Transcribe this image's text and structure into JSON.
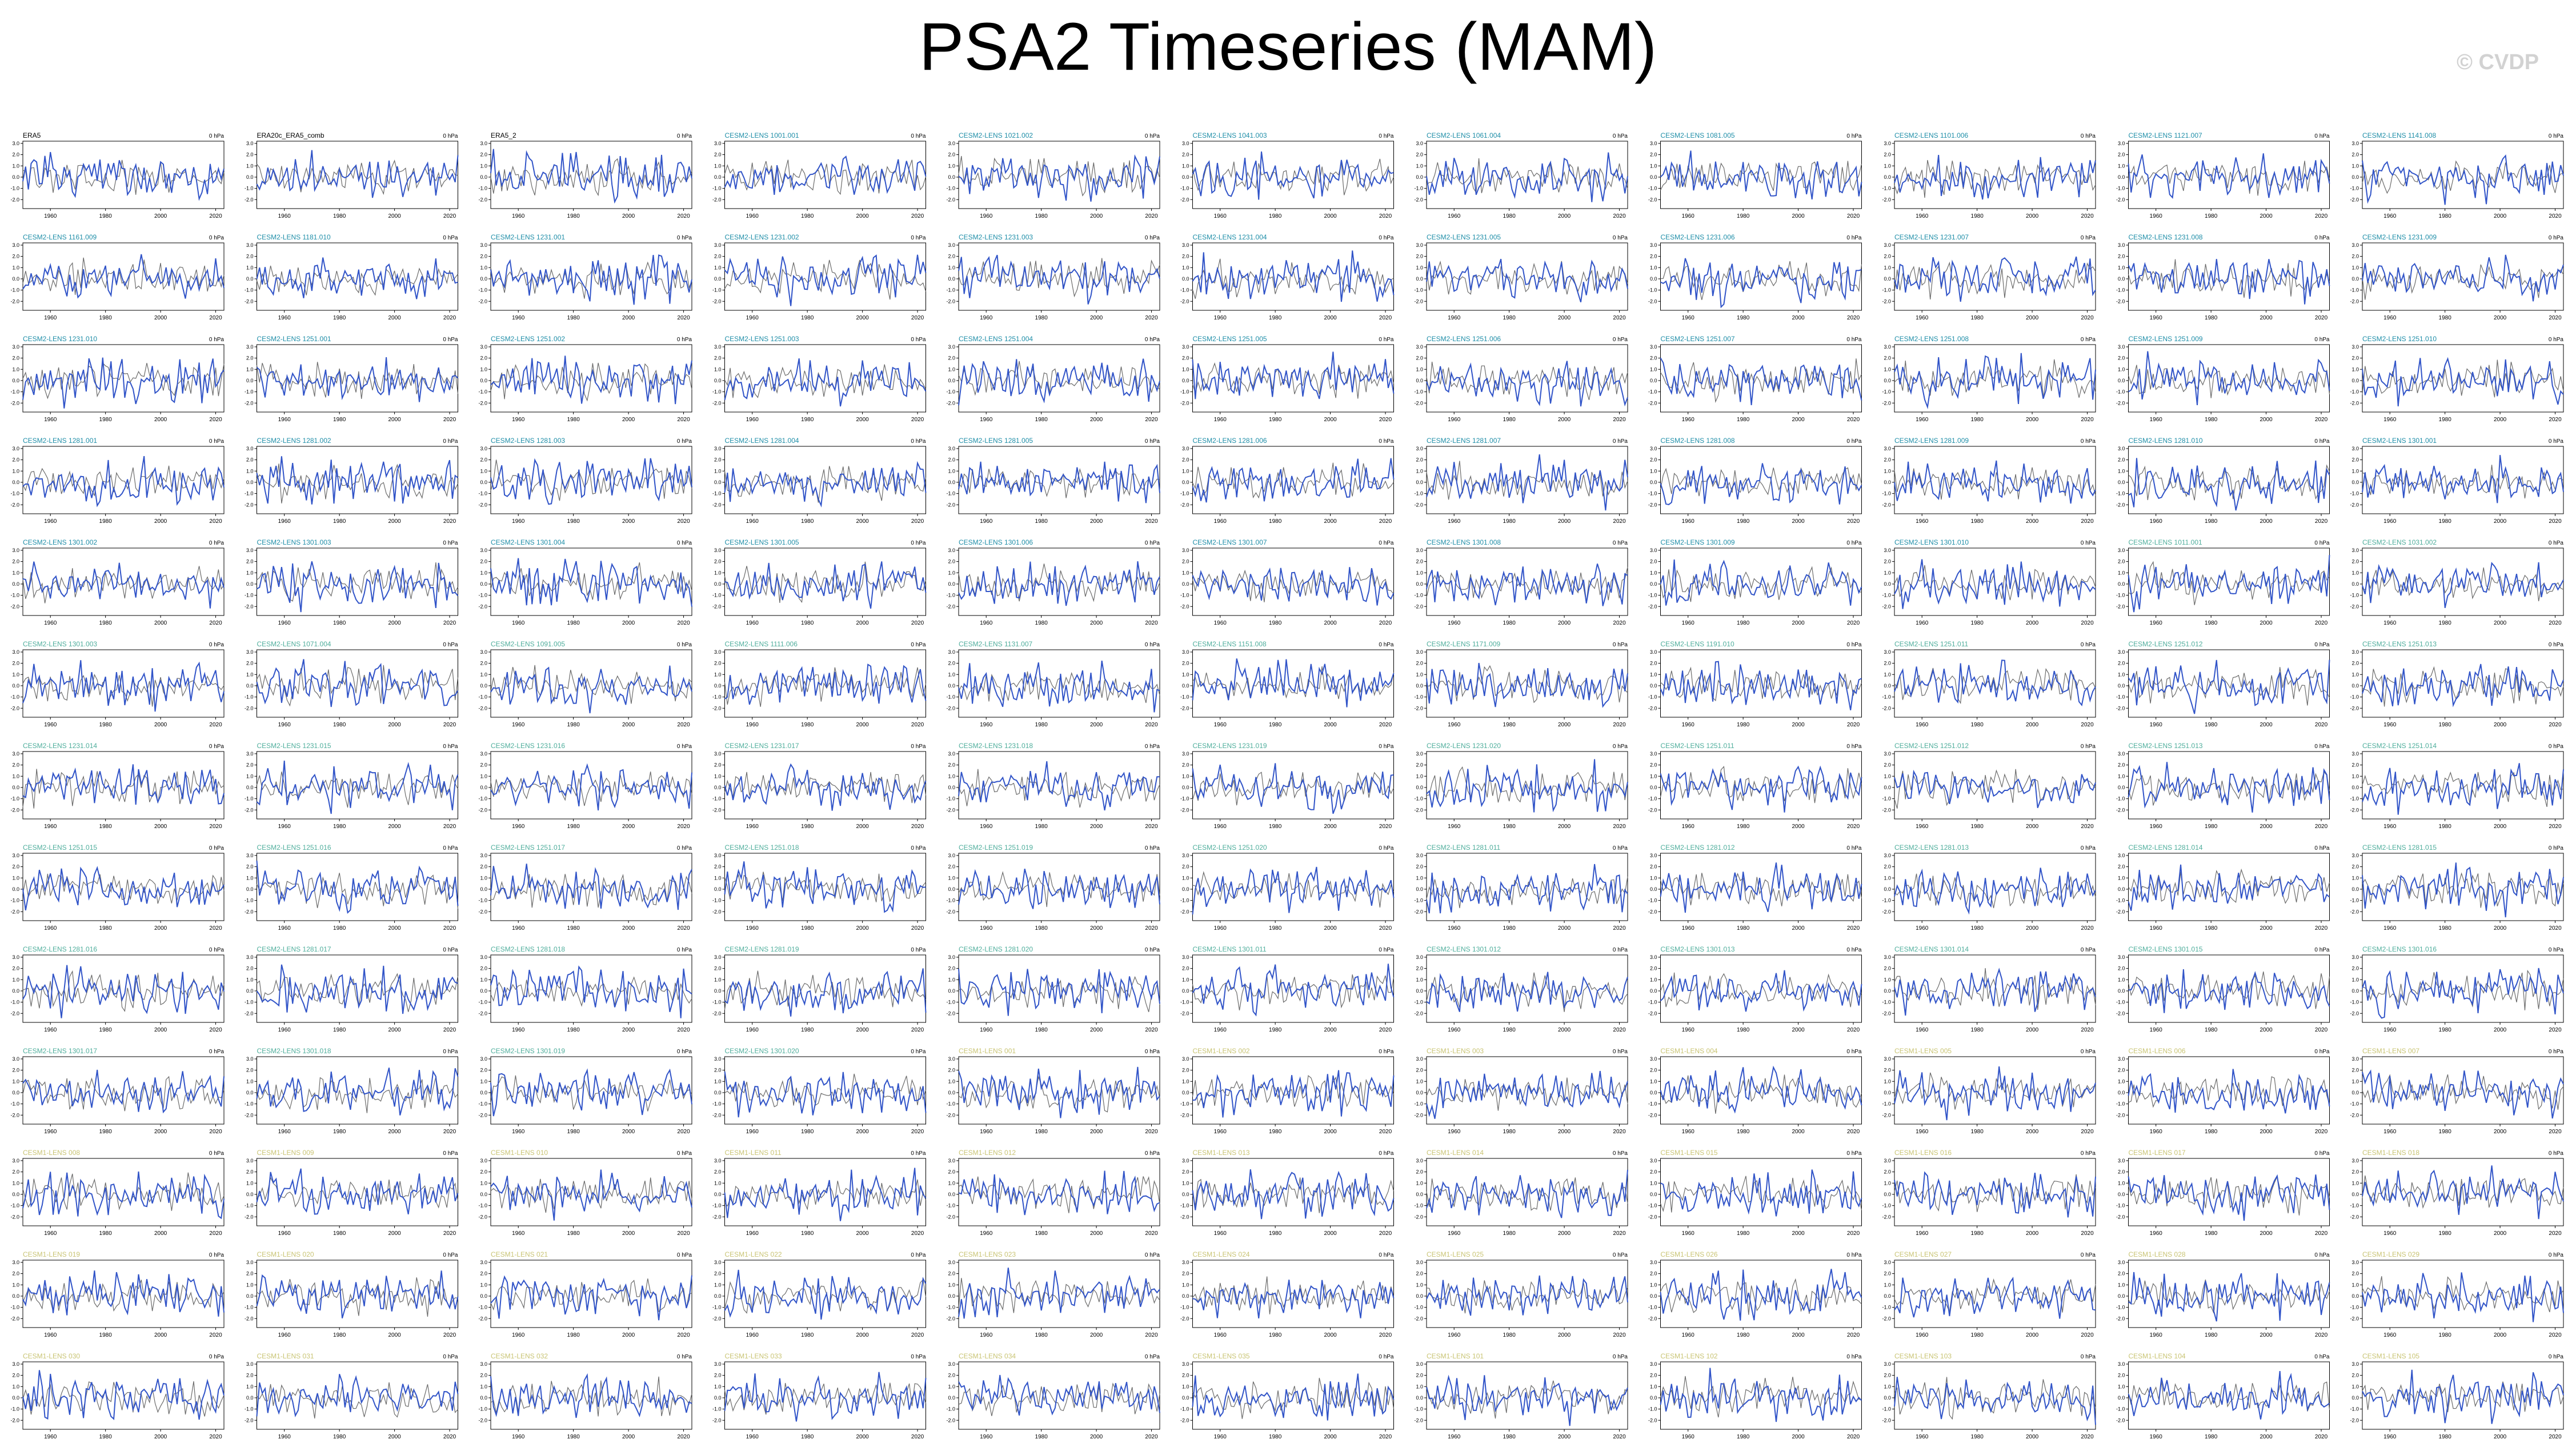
{
  "title": "PSA2 Timeseries (MAM)",
  "watermark": "© CVDP",
  "colors": {
    "observed_line": "#3154c8",
    "reference_line": "#6b6b6b",
    "group_obs": "#000000",
    "group_cesm2": "#1f8ea8",
    "group_cesm2b": "#4fae9c",
    "group_cesm1": "#c9c474"
  },
  "chart_data": {
    "type": "line",
    "layout": "small-multiples",
    "rows": 14,
    "columns": 11,
    "xlim": [
      1950,
      2023
    ],
    "xticks": [
      1960,
      1980,
      2000,
      2020
    ],
    "ylim": [
      -2.8,
      3.2
    ],
    "yticks": [
      "3.0",
      "2.0",
      "1.0",
      "0.0",
      "-1.0",
      "-2.0"
    ],
    "units": "0 hPa",
    "series": [
      "observed",
      "reference"
    ],
    "panels": [
      {
        "title": "ERA5",
        "group": "obs"
      },
      {
        "title": "ERA20c_ERA5_comb",
        "group": "obs"
      },
      {
        "title": "ERA5_2",
        "group": "obs"
      },
      {
        "title": "CESM2-LENS 1001.001",
        "group": "cesm2"
      },
      {
        "title": "CESM2-LENS 1021.002",
        "group": "cesm2"
      },
      {
        "title": "CESM2-LENS 1041.003",
        "group": "cesm2"
      },
      {
        "title": "CESM2-LENS 1061.004",
        "group": "cesm2"
      },
      {
        "title": "CESM2-LENS 1081.005",
        "group": "cesm2"
      },
      {
        "title": "CESM2-LENS 1101.006",
        "group": "cesm2"
      },
      {
        "title": "CESM2-LENS 1121.007",
        "group": "cesm2"
      },
      {
        "title": "CESM2-LENS 1141.008",
        "group": "cesm2"
      },
      {
        "title": "CESM2-LENS 1161.009",
        "group": "cesm2"
      },
      {
        "title": "CESM2-LENS 1181.010",
        "group": "cesm2"
      },
      {
        "title": "CESM2-LENS 1231.001",
        "group": "cesm2"
      },
      {
        "title": "CESM2-LENS 1231.002",
        "group": "cesm2"
      },
      {
        "title": "CESM2-LENS 1231.003",
        "group": "cesm2"
      },
      {
        "title": "CESM2-LENS 1231.004",
        "group": "cesm2"
      },
      {
        "title": "CESM2-LENS 1231.005",
        "group": "cesm2"
      },
      {
        "title": "CESM2-LENS 1231.006",
        "group": "cesm2"
      },
      {
        "title": "CESM2-LENS 1231.007",
        "group": "cesm2"
      },
      {
        "title": "CESM2-LENS 1231.008",
        "group": "cesm2"
      },
      {
        "title": "CESM2-LENS 1231.009",
        "group": "cesm2"
      },
      {
        "title": "CESM2-LENS 1231.010",
        "group": "cesm2"
      },
      {
        "title": "CESM2-LENS 1251.001",
        "group": "cesm2"
      },
      {
        "title": "CESM2-LENS 1251.002",
        "group": "cesm2"
      },
      {
        "title": "CESM2-LENS 1251.003",
        "group": "cesm2"
      },
      {
        "title": "CESM2-LENS 1251.004",
        "group": "cesm2"
      },
      {
        "title": "CESM2-LENS 1251.005",
        "group": "cesm2"
      },
      {
        "title": "CESM2-LENS 1251.006",
        "group": "cesm2"
      },
      {
        "title": "CESM2-LENS 1251.007",
        "group": "cesm2"
      },
      {
        "title": "CESM2-LENS 1251.008",
        "group": "cesm2"
      },
      {
        "title": "CESM2-LENS 1251.009",
        "group": "cesm2"
      },
      {
        "title": "CESM2-LENS 1251.010",
        "group": "cesm2"
      },
      {
        "title": "CESM2-LENS 1281.001",
        "group": "cesm2"
      },
      {
        "title": "CESM2-LENS 1281.002",
        "group": "cesm2"
      },
      {
        "title": "CESM2-LENS 1281.003",
        "group": "cesm2"
      },
      {
        "title": "CESM2-LENS 1281.004",
        "group": "cesm2"
      },
      {
        "title": "CESM2-LENS 1281.005",
        "group": "cesm2"
      },
      {
        "title": "CESM2-LENS 1281.006",
        "group": "cesm2"
      },
      {
        "title": "CESM2-LENS 1281.007",
        "group": "cesm2"
      },
      {
        "title": "CESM2-LENS 1281.008",
        "group": "cesm2"
      },
      {
        "title": "CESM2-LENS 1281.009",
        "group": "cesm2"
      },
      {
        "title": "CESM2-LENS 1281.010",
        "group": "cesm2"
      },
      {
        "title": "CESM2-LENS 1301.001",
        "group": "cesm2"
      },
      {
        "title": "CESM2-LENS 1301.002",
        "group": "cesm2"
      },
      {
        "title": "CESM2-LENS 1301.003",
        "group": "cesm2"
      },
      {
        "title": "CESM2-LENS 1301.004",
        "group": "cesm2"
      },
      {
        "title": "CESM2-LENS 1301.005",
        "group": "cesm2"
      },
      {
        "title": "CESM2-LENS 1301.006",
        "group": "cesm2"
      },
      {
        "title": "CESM2-LENS 1301.007",
        "group": "cesm2"
      },
      {
        "title": "CESM2-LENS 1301.008",
        "group": "cesm2"
      },
      {
        "title": "CESM2-LENS 1301.009",
        "group": "cesm2"
      },
      {
        "title": "CESM2-LENS 1301.010",
        "group": "cesm2"
      },
      {
        "title": "CESM2-LENS 1011.001",
        "group": "cesm2b"
      },
      {
        "title": "CESM2-LENS 1031.002",
        "group": "cesm2b"
      },
      {
        "title": "CESM2-LENS 1301.003",
        "group": "cesm2b"
      },
      {
        "title": "CESM2-LENS 1071.004",
        "group": "cesm2b"
      },
      {
        "title": "CESM2-LENS 1091.005",
        "group": "cesm2b"
      },
      {
        "title": "CESM2-LENS 1111.006",
        "group": "cesm2b"
      },
      {
        "title": "CESM2-LENS 1131.007",
        "group": "cesm2b"
      },
      {
        "title": "CESM2-LENS 1151.008",
        "group": "cesm2b"
      },
      {
        "title": "CESM2-LENS 1171.009",
        "group": "cesm2b"
      },
      {
        "title": "CESM2-LENS 1191.010",
        "group": "cesm2b"
      },
      {
        "title": "CESM2-LENS 1251.011",
        "group": "cesm2b"
      },
      {
        "title": "CESM2-LENS 1251.012",
        "group": "cesm2b"
      },
      {
        "title": "CESM2-LENS 1251.013",
        "group": "cesm2b"
      },
      {
        "title": "CESM2-LENS 1231.014",
        "group": "cesm2b"
      },
      {
        "title": "CESM2-LENS 1231.015",
        "group": "cesm2b"
      },
      {
        "title": "CESM2-LENS 1231.016",
        "group": "cesm2b"
      },
      {
        "title": "CESM2-LENS 1231.017",
        "group": "cesm2b"
      },
      {
        "title": "CESM2-LENS 1231.018",
        "group": "cesm2b"
      },
      {
        "title": "CESM2-LENS 1231.019",
        "group": "cesm2b"
      },
      {
        "title": "CESM2-LENS 1231.020",
        "group": "cesm2b"
      },
      {
        "title": "CESM2-LENS 1251.011",
        "group": "cesm2b"
      },
      {
        "title": "CESM2-LENS 1251.012",
        "group": "cesm2b"
      },
      {
        "title": "CESM2-LENS 1251.013",
        "group": "cesm2b"
      },
      {
        "title": "CESM2-LENS 1251.014",
        "group": "cesm2b"
      },
      {
        "title": "CESM2-LENS 1251.015",
        "group": "cesm2b"
      },
      {
        "title": "CESM2-LENS 1251.016",
        "group": "cesm2b"
      },
      {
        "title": "CESM2-LENS 1251.017",
        "group": "cesm2b"
      },
      {
        "title": "CESM2-LENS 1251.018",
        "group": "cesm2b"
      },
      {
        "title": "CESM2-LENS 1251.019",
        "group": "cesm2b"
      },
      {
        "title": "CESM2-LENS 1251.020",
        "group": "cesm2b"
      },
      {
        "title": "CESM2-LENS 1281.011",
        "group": "cesm2b"
      },
      {
        "title": "CESM2-LENS 1281.012",
        "group": "cesm2b"
      },
      {
        "title": "CESM2-LENS 1281.013",
        "group": "cesm2b"
      },
      {
        "title": "CESM2-LENS 1281.014",
        "group": "cesm2b"
      },
      {
        "title": "CESM2-LENS 1281.015",
        "group": "cesm2b"
      },
      {
        "title": "CESM2-LENS 1281.016",
        "group": "cesm2b"
      },
      {
        "title": "CESM2-LENS 1281.017",
        "group": "cesm2b"
      },
      {
        "title": "CESM2-LENS 1281.018",
        "group": "cesm2b"
      },
      {
        "title": "CESM2-LENS 1281.019",
        "group": "cesm2b"
      },
      {
        "title": "CESM2-LENS 1281.020",
        "group": "cesm2b"
      },
      {
        "title": "CESM2-LENS 1301.011",
        "group": "cesm2b"
      },
      {
        "title": "CESM2-LENS 1301.012",
        "group": "cesm2b"
      },
      {
        "title": "CESM2-LENS 1301.013",
        "group": "cesm2b"
      },
      {
        "title": "CESM2-LENS 1301.014",
        "group": "cesm2b"
      },
      {
        "title": "CESM2-LENS 1301.015",
        "group": "cesm2b"
      },
      {
        "title": "CESM2-LENS 1301.016",
        "group": "cesm2b"
      },
      {
        "title": "CESM2-LENS 1301.017",
        "group": "cesm2b"
      },
      {
        "title": "CESM2-LENS 1301.018",
        "group": "cesm2b"
      },
      {
        "title": "CESM2-LENS 1301.019",
        "group": "cesm2b"
      },
      {
        "title": "CESM2-LENS 1301.020",
        "group": "cesm2b"
      },
      {
        "title": "CESM1-LENS 001",
        "group": "cesm1"
      },
      {
        "title": "CESM1-LENS 002",
        "group": "cesm1"
      },
      {
        "title": "CESM1-LENS 003",
        "group": "cesm1"
      },
      {
        "title": "CESM1-LENS 004",
        "group": "cesm1"
      },
      {
        "title": "CESM1-LENS 005",
        "group": "cesm1"
      },
      {
        "title": "CESM1-LENS 006",
        "group": "cesm1"
      },
      {
        "title": "CESM1-LENS 007",
        "group": "cesm1"
      },
      {
        "title": "CESM1-LENS 008",
        "group": "cesm1"
      },
      {
        "title": "CESM1-LENS 009",
        "group": "cesm1"
      },
      {
        "title": "CESM1-LENS 010",
        "group": "cesm1"
      },
      {
        "title": "CESM1-LENS 011",
        "group": "cesm1"
      },
      {
        "title": "CESM1-LENS 012",
        "group": "cesm1"
      },
      {
        "title": "CESM1-LENS 013",
        "group": "cesm1"
      },
      {
        "title": "CESM1-LENS 014",
        "group": "cesm1"
      },
      {
        "title": "CESM1-LENS 015",
        "group": "cesm1"
      },
      {
        "title": "CESM1-LENS 016",
        "group": "cesm1"
      },
      {
        "title": "CESM1-LENS 017",
        "group": "cesm1"
      },
      {
        "title": "CESM1-LENS 018",
        "group": "cesm1"
      },
      {
        "title": "CESM1-LENS 019",
        "group": "cesm1"
      },
      {
        "title": "CESM1-LENS 020",
        "group": "cesm1"
      },
      {
        "title": "CESM1-LENS 021",
        "group": "cesm1"
      },
      {
        "title": "CESM1-LENS 022",
        "group": "cesm1"
      },
      {
        "title": "CESM1-LENS 023",
        "group": "cesm1"
      },
      {
        "title": "CESM1-LENS 024",
        "group": "cesm1"
      },
      {
        "title": "CESM1-LENS 025",
        "group": "cesm1"
      },
      {
        "title": "CESM1-LENS 026",
        "group": "cesm1"
      },
      {
        "title": "CESM1-LENS 027",
        "group": "cesm1"
      },
      {
        "title": "CESM1-LENS 028",
        "group": "cesm1"
      },
      {
        "title": "CESM1-LENS 029",
        "group": "cesm1"
      },
      {
        "title": "CESM1-LENS 030",
        "group": "cesm1"
      },
      {
        "title": "CESM1-LENS 031",
        "group": "cesm1"
      },
      {
        "title": "CESM1-LENS 032",
        "group": "cesm1"
      },
      {
        "title": "CESM1-LENS 033",
        "group": "cesm1"
      },
      {
        "title": "CESM1-LENS 034",
        "group": "cesm1"
      },
      {
        "title": "CESM1-LENS 035",
        "group": "cesm1"
      },
      {
        "title": "CESM1-LENS 101",
        "group": "cesm1"
      },
      {
        "title": "CESM1-LENS 102",
        "group": "cesm1"
      },
      {
        "title": "CESM1-LENS 103",
        "group": "cesm1"
      },
      {
        "title": "CESM1-LENS 104",
        "group": "cesm1"
      },
      {
        "title": "CESM1-LENS 105",
        "group": "cesm1"
      }
    ]
  }
}
